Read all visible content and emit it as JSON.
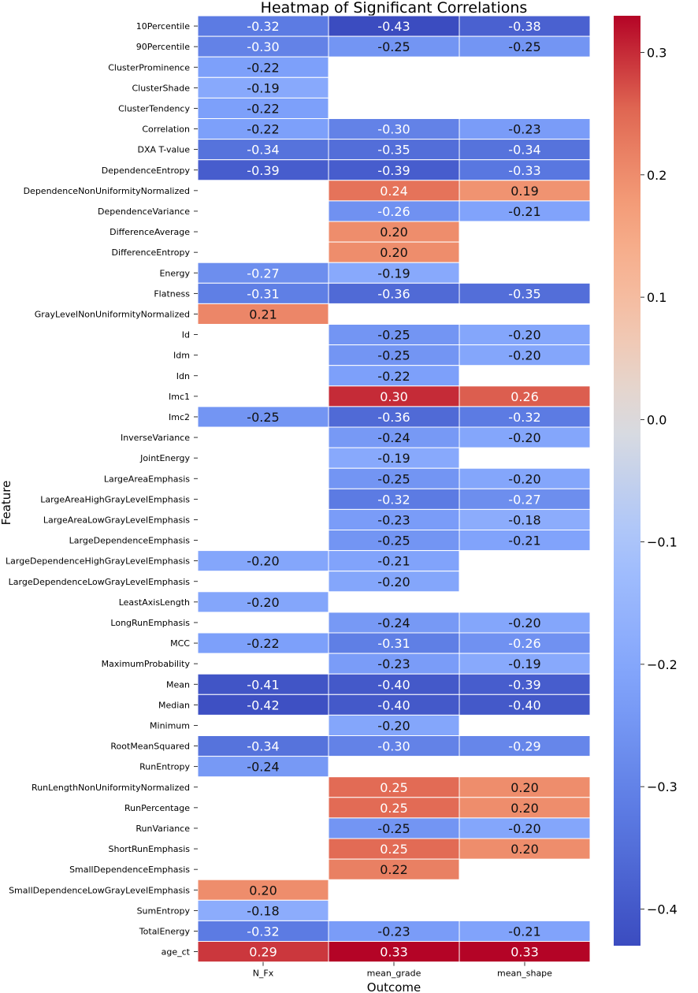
{
  "chart_data": {
    "type": "heatmap",
    "title": "Heatmap of Significant Correlations",
    "xlabel": "Outcome",
    "ylabel": "Feature",
    "columns": [
      "N_Fx",
      "mean_grade",
      "mean_shape"
    ],
    "rows": [
      "10Percentile",
      "90Percentile",
      "ClusterProminence",
      "ClusterShade",
      "ClusterTendency",
      "Correlation",
      "DXA T-value",
      "DependenceEntropy",
      "DependenceNonUniformityNormalized",
      "DependenceVariance",
      "DifferenceAverage",
      "DifferenceEntropy",
      "Energy",
      "Flatness",
      "GrayLevelNonUniformityNormalized",
      "Id",
      "Idm",
      "Idn",
      "Imc1",
      "Imc2",
      "InverseVariance",
      "JointEnergy",
      "LargeAreaEmphasis",
      "LargeAreaHighGrayLevelEmphasis",
      "LargeAreaLowGrayLevelEmphasis",
      "LargeDependenceEmphasis",
      "LargeDependenceHighGrayLevelEmphasis",
      "LargeDependenceLowGrayLevelEmphasis",
      "LeastAxisLength",
      "LongRunEmphasis",
      "MCC",
      "MaximumProbability",
      "Mean",
      "Median",
      "Minimum",
      "RootMeanSquared",
      "RunEntropy",
      "RunLengthNonUniformityNormalized",
      "RunPercentage",
      "RunVariance",
      "ShortRunEmphasis",
      "SmallDependenceEmphasis",
      "SmallDependenceLowGrayLevelEmphasis",
      "SumEntropy",
      "TotalEnergy",
      "age_ct"
    ],
    "values": [
      [
        -0.32,
        -0.43,
        -0.38
      ],
      [
        -0.3,
        -0.25,
        -0.25
      ],
      [
        -0.22,
        null,
        null
      ],
      [
        -0.19,
        null,
        null
      ],
      [
        -0.22,
        null,
        null
      ],
      [
        -0.22,
        -0.3,
        -0.23
      ],
      [
        -0.34,
        -0.35,
        -0.34
      ],
      [
        -0.39,
        -0.39,
        -0.33
      ],
      [
        null,
        0.24,
        0.19
      ],
      [
        null,
        -0.26,
        -0.21
      ],
      [
        null,
        0.2,
        null
      ],
      [
        null,
        0.2,
        null
      ],
      [
        -0.27,
        -0.19,
        null
      ],
      [
        -0.31,
        -0.36,
        -0.35
      ],
      [
        0.21,
        null,
        null
      ],
      [
        null,
        -0.25,
        -0.2
      ],
      [
        null,
        -0.25,
        -0.2
      ],
      [
        null,
        -0.22,
        null
      ],
      [
        null,
        0.3,
        0.26
      ],
      [
        -0.25,
        -0.36,
        -0.32
      ],
      [
        null,
        -0.24,
        -0.2
      ],
      [
        null,
        -0.19,
        null
      ],
      [
        null,
        -0.25,
        -0.2
      ],
      [
        null,
        -0.32,
        -0.27
      ],
      [
        null,
        -0.23,
        -0.18
      ],
      [
        null,
        -0.25,
        -0.21
      ],
      [
        -0.2,
        -0.21,
        null
      ],
      [
        null,
        -0.2,
        null
      ],
      [
        -0.2,
        null,
        null
      ],
      [
        null,
        -0.24,
        -0.2
      ],
      [
        -0.22,
        -0.31,
        -0.26
      ],
      [
        null,
        -0.23,
        -0.19
      ],
      [
        -0.41,
        -0.4,
        -0.39
      ],
      [
        -0.42,
        -0.4,
        -0.4
      ],
      [
        null,
        -0.2,
        null
      ],
      [
        -0.34,
        -0.3,
        -0.29
      ],
      [
        -0.24,
        null,
        null
      ],
      [
        null,
        0.25,
        0.2
      ],
      [
        null,
        0.25,
        0.2
      ],
      [
        null,
        -0.25,
        -0.2
      ],
      [
        null,
        0.25,
        0.2
      ],
      [
        null,
        0.22,
        null
      ],
      [
        0.2,
        null,
        null
      ],
      [
        -0.18,
        null,
        null
      ],
      [
        -0.32,
        -0.23,
        -0.21
      ],
      [
        0.29,
        0.33,
        0.33
      ]
    ],
    "colorbar": {
      "min": -0.43,
      "max": 0.33,
      "ticks": [
        0.3,
        0.2,
        0.1,
        0.0,
        -0.1,
        -0.2,
        -0.3,
        -0.4
      ],
      "tick_labels": [
        "0.3",
        "0.2",
        "0.1",
        "0.0",
        "−0.1",
        "−0.2",
        "−0.3",
        "−0.4"
      ],
      "colormap": "coolwarm"
    }
  }
}
